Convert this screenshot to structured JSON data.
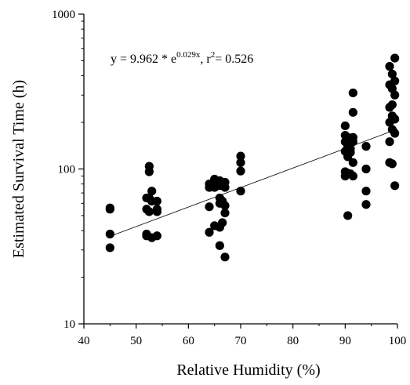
{
  "chart_data": {
    "type": "scatter",
    "title": "",
    "xlabel": "Relative Humidity (%)",
    "ylabel": "Estimated Survival Time (h)",
    "xlim": [
      40,
      100
    ],
    "ylim": [
      10,
      1000
    ],
    "y_scale": "log",
    "grid": false,
    "x_ticks": [
      40,
      50,
      60,
      70,
      80,
      90,
      100
    ],
    "x_tick_labels": [
      "40",
      "50",
      "60",
      "70",
      "80",
      "90",
      "100"
    ],
    "y_ticks": [
      10,
      100,
      1000
    ],
    "y_tick_labels": [
      "10",
      "100",
      "1000"
    ],
    "annotation": {
      "prefix": "y = 9.962 * e",
      "exponent": "0.029x",
      "middle": ", r",
      "r_exponent": "2",
      "suffix": "= 0.526"
    },
    "fit_line": {
      "a": 9.962,
      "b": 0.029,
      "x_range": [
        45,
        100
      ]
    },
    "marker_color": "#000000",
    "points": [
      {
        "x": 45,
        "y": 56
      },
      {
        "x": 45,
        "y": 55
      },
      {
        "x": 45,
        "y": 38
      },
      {
        "x": 45,
        "y": 31
      },
      {
        "x": 52,
        "y": 65
      },
      {
        "x": 52,
        "y": 55
      },
      {
        "x": 52,
        "y": 38
      },
      {
        "x": 52,
        "y": 37
      },
      {
        "x": 52.5,
        "y": 104
      },
      {
        "x": 52.5,
        "y": 96
      },
      {
        "x": 52.5,
        "y": 65
      },
      {
        "x": 52.5,
        "y": 53
      },
      {
        "x": 53,
        "y": 72
      },
      {
        "x": 53,
        "y": 62
      },
      {
        "x": 53,
        "y": 36
      },
      {
        "x": 54,
        "y": 62
      },
      {
        "x": 54,
        "y": 55
      },
      {
        "x": 54,
        "y": 53
      },
      {
        "x": 54,
        "y": 37
      },
      {
        "x": 64,
        "y": 80
      },
      {
        "x": 64,
        "y": 76
      },
      {
        "x": 64,
        "y": 57
      },
      {
        "x": 64,
        "y": 39
      },
      {
        "x": 65,
        "y": 86
      },
      {
        "x": 65,
        "y": 80
      },
      {
        "x": 65,
        "y": 76
      },
      {
        "x": 65,
        "y": 43
      },
      {
        "x": 66,
        "y": 84
      },
      {
        "x": 66,
        "y": 78
      },
      {
        "x": 66,
        "y": 65
      },
      {
        "x": 66,
        "y": 60
      },
      {
        "x": 66,
        "y": 42
      },
      {
        "x": 66,
        "y": 32
      },
      {
        "x": 66.5,
        "y": 80
      },
      {
        "x": 66.5,
        "y": 62
      },
      {
        "x": 66.5,
        "y": 45
      },
      {
        "x": 67,
        "y": 82
      },
      {
        "x": 67,
        "y": 76
      },
      {
        "x": 67,
        "y": 58
      },
      {
        "x": 67,
        "y": 52
      },
      {
        "x": 67,
        "y": 27
      },
      {
        "x": 70,
        "y": 121
      },
      {
        "x": 70,
        "y": 110
      },
      {
        "x": 70,
        "y": 97
      },
      {
        "x": 70,
        "y": 72
      },
      {
        "x": 90,
        "y": 190
      },
      {
        "x": 90,
        "y": 165
      },
      {
        "x": 90,
        "y": 150
      },
      {
        "x": 90,
        "y": 130
      },
      {
        "x": 90,
        "y": 96
      },
      {
        "x": 90,
        "y": 90
      },
      {
        "x": 90.5,
        "y": 160
      },
      {
        "x": 90.5,
        "y": 140
      },
      {
        "x": 90.5,
        "y": 120
      },
      {
        "x": 90.5,
        "y": 94
      },
      {
        "x": 90.5,
        "y": 50
      },
      {
        "x": 91,
        "y": 155
      },
      {
        "x": 91,
        "y": 135
      },
      {
        "x": 91,
        "y": 128
      },
      {
        "x": 91,
        "y": 93
      },
      {
        "x": 91.5,
        "y": 310
      },
      {
        "x": 91.5,
        "y": 232
      },
      {
        "x": 91.5,
        "y": 160
      },
      {
        "x": 91.5,
        "y": 150
      },
      {
        "x": 91.5,
        "y": 110
      },
      {
        "x": 91.5,
        "y": 90
      },
      {
        "x": 94,
        "y": 140
      },
      {
        "x": 94,
        "y": 100
      },
      {
        "x": 94,
        "y": 72
      },
      {
        "x": 94,
        "y": 59
      },
      {
        "x": 98.5,
        "y": 460
      },
      {
        "x": 98.5,
        "y": 350
      },
      {
        "x": 98.5,
        "y": 250
      },
      {
        "x": 98.5,
        "y": 200
      },
      {
        "x": 98.5,
        "y": 150
      },
      {
        "x": 98.5,
        "y": 110
      },
      {
        "x": 99,
        "y": 410
      },
      {
        "x": 99,
        "y": 330
      },
      {
        "x": 99,
        "y": 260
      },
      {
        "x": 99,
        "y": 220
      },
      {
        "x": 99,
        "y": 180
      },
      {
        "x": 99,
        "y": 108
      },
      {
        "x": 99.5,
        "y": 520
      },
      {
        "x": 99.5,
        "y": 370
      },
      {
        "x": 99.5,
        "y": 300
      },
      {
        "x": 99.5,
        "y": 210
      },
      {
        "x": 99.5,
        "y": 170
      },
      {
        "x": 99.5,
        "y": 78
      }
    ]
  }
}
